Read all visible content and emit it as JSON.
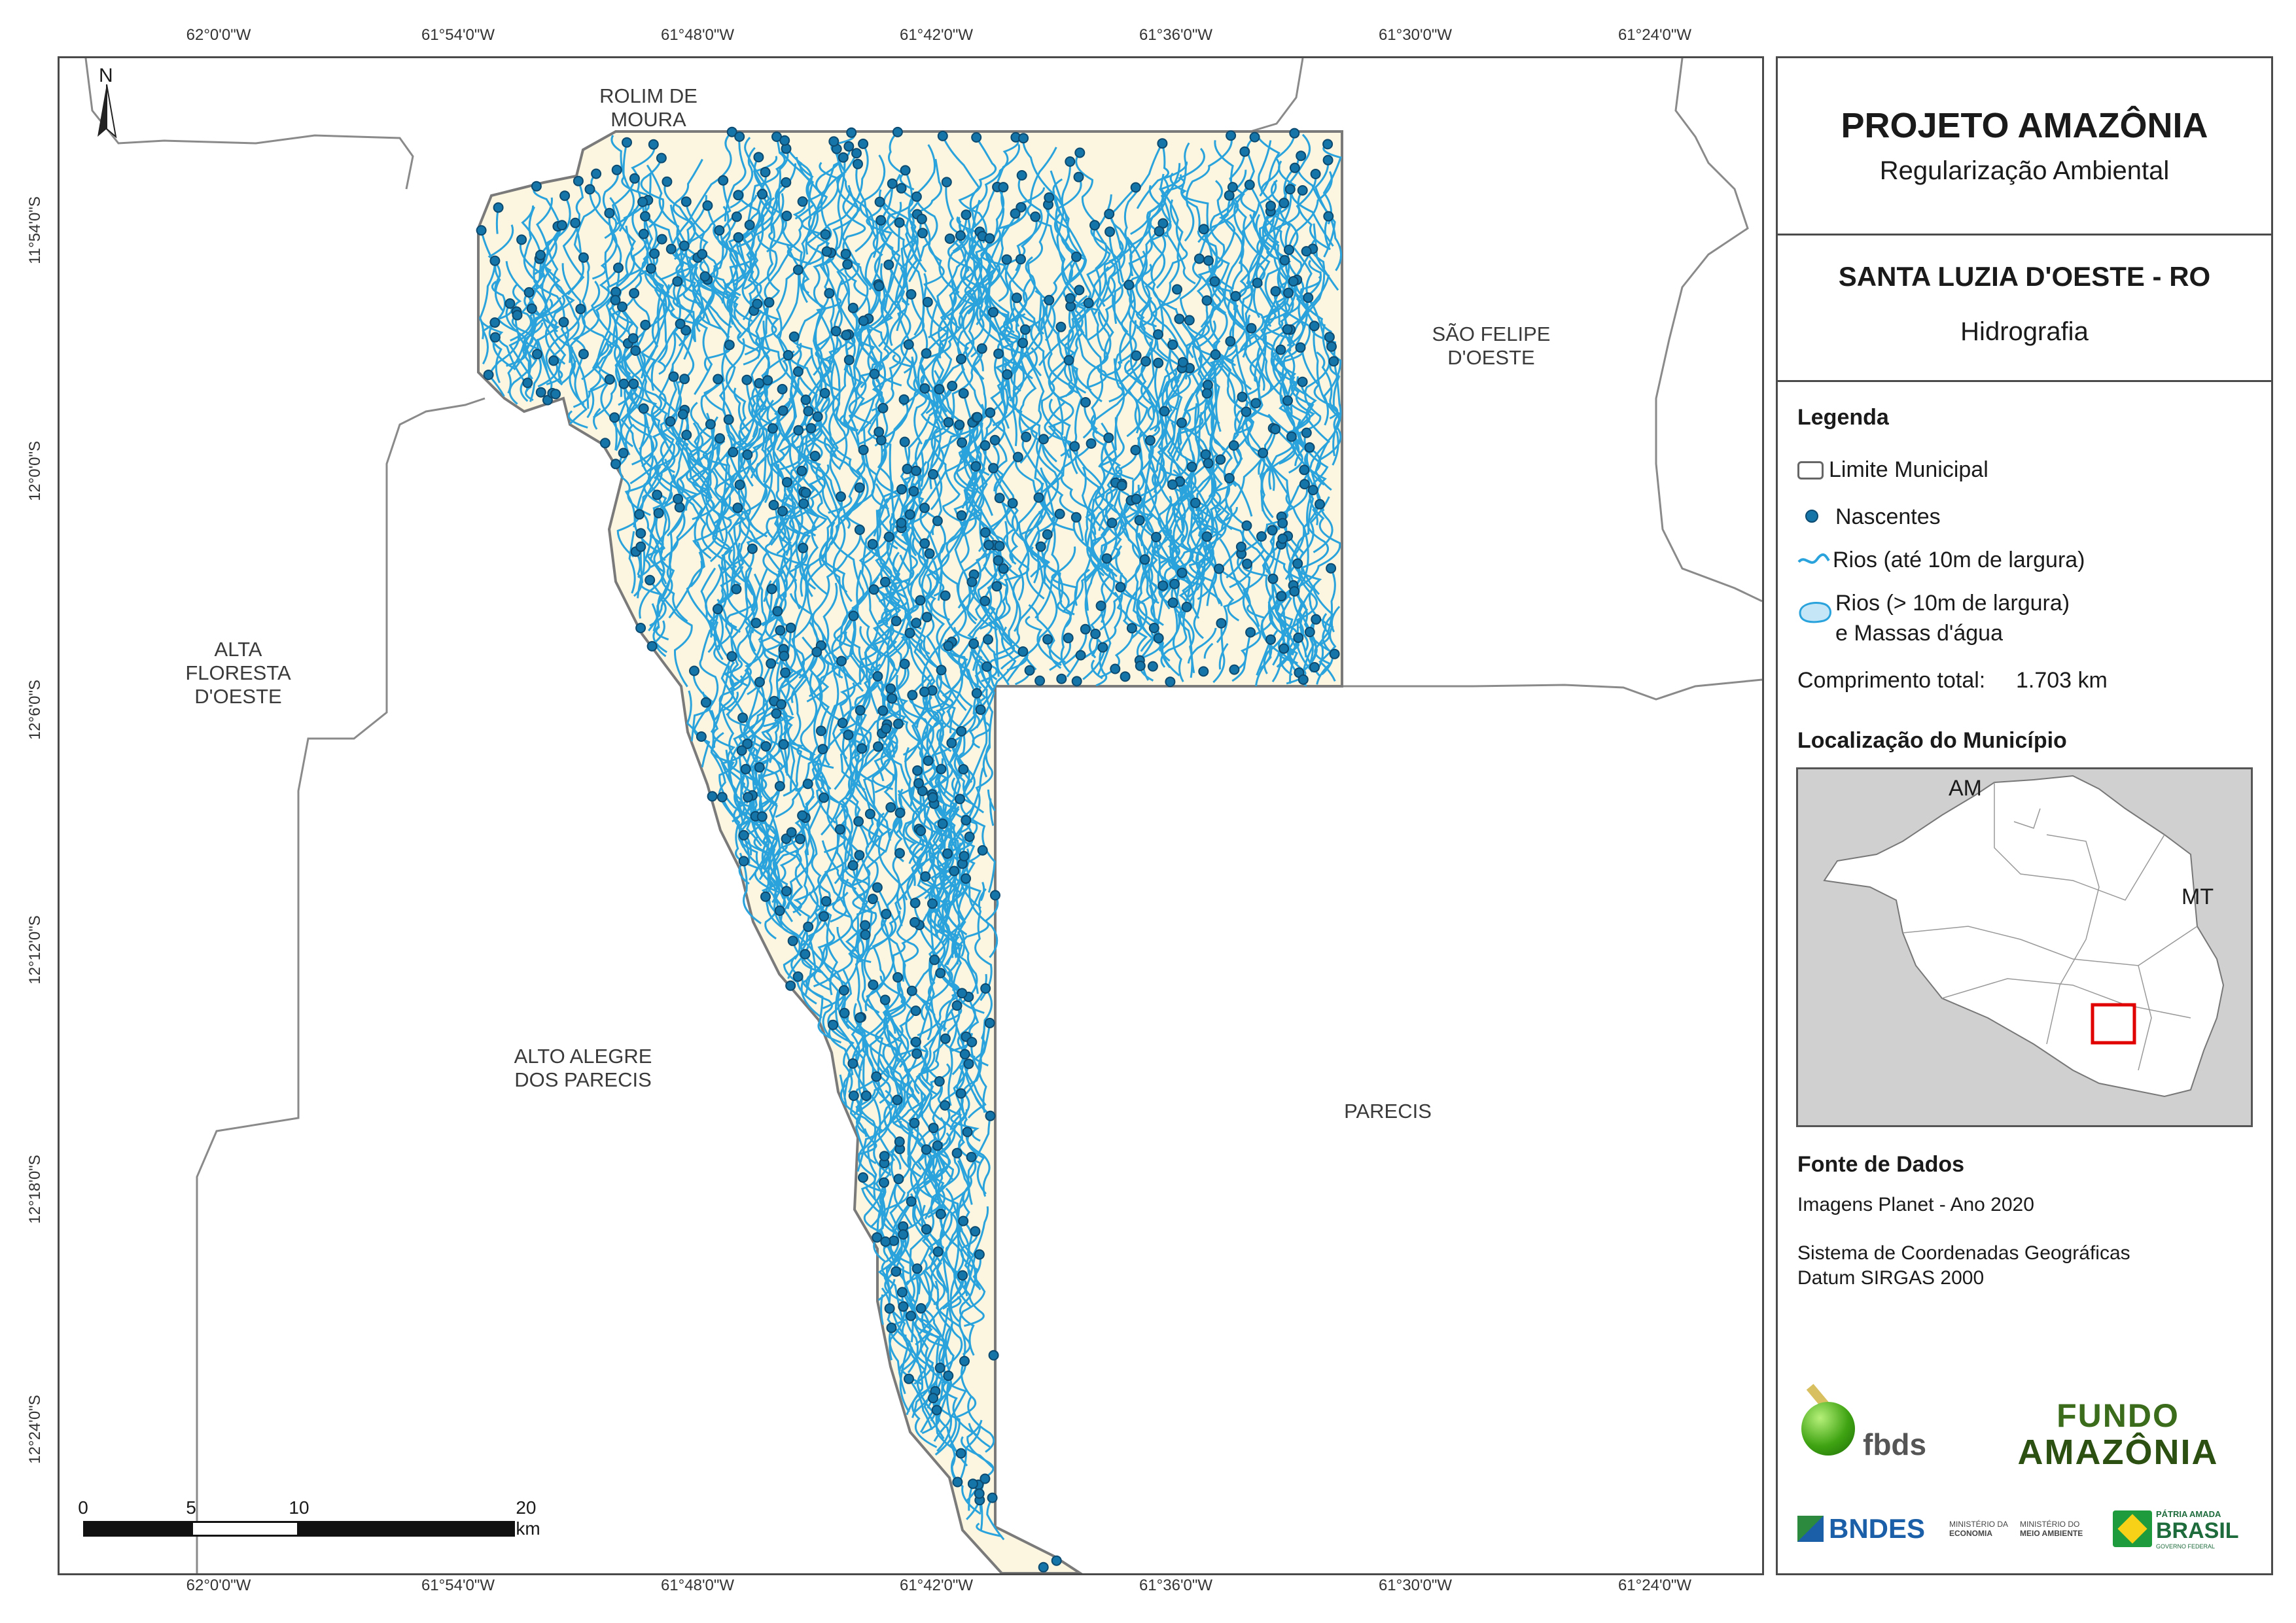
{
  "map": {
    "lon_ticks": [
      "62°0'0\"W",
      "61°54'0\"W",
      "61°48'0\"W",
      "61°42'0\"W",
      "61°36'0\"W",
      "61°30'0\"W",
      "61°24'0\"W"
    ],
    "lat_ticks": [
      "11°54'0\"S",
      "12°0'0\"S",
      "12°6'0\"S",
      "12°12'0\"S",
      "12°18'0\"S",
      "12°24'0\"S"
    ],
    "north_label": "N",
    "places": {
      "rolim": [
        "ROLIM DE",
        "MOURA"
      ],
      "sao_felipe": [
        "SÃO FELIPE",
        "D'OESTE"
      ],
      "alta_floresta": [
        "ALTA",
        "FLORESTA",
        "D'OESTE"
      ],
      "alto_alegre": [
        "ALTO ALEGRE",
        "DOS PARECIS"
      ],
      "parecis": [
        "PARECIS"
      ]
    },
    "scale": {
      "labels": [
        "0",
        "5",
        "10",
        "20 km"
      ],
      "unit": "km"
    },
    "colors": {
      "municipality_fill": "#fcf6e0",
      "river": "#2aa3dc",
      "spring": "#1574a8",
      "border": "#8a8a8a"
    }
  },
  "panel": {
    "title": "PROJETO AMAZÔNIA",
    "subtitle": "Regularização Ambiental",
    "municipality": "SANTA LUZIA D'OESTE - RO",
    "theme": "Hidrografia",
    "legend": {
      "heading": "Legenda",
      "items": [
        "Limite Municipal",
        "Nascentes",
        "Rios (até 10m de largura)",
        "Rios (> 10m de largura)",
        "e Massas d'água"
      ],
      "total_length_label": "Comprimento total:",
      "total_length_value": "1.703 km"
    },
    "location": {
      "heading": "Localização do Município",
      "labels": [
        "AM",
        "MT"
      ]
    },
    "sources": {
      "heading": "Fonte de Dados",
      "lines": [
        "Imagens Planet - Ano 2020",
        "Sistema de Coordenadas Geográficas",
        "Datum SIRGAS 2000"
      ]
    },
    "logos": {
      "fbds": "fbds",
      "fundo": [
        "FUNDO",
        "AMAZÔNIA"
      ],
      "bndes": "BNDES",
      "min_economia": [
        "MINISTÉRIO DA",
        "ECONOMIA"
      ],
      "min_ambiente": [
        "MINISTÉRIO DO",
        "MEIO AMBIENTE"
      ],
      "brasil": [
        "PÁTRIA AMADA",
        "BRASIL",
        "GOVERNO FEDERAL"
      ]
    }
  }
}
